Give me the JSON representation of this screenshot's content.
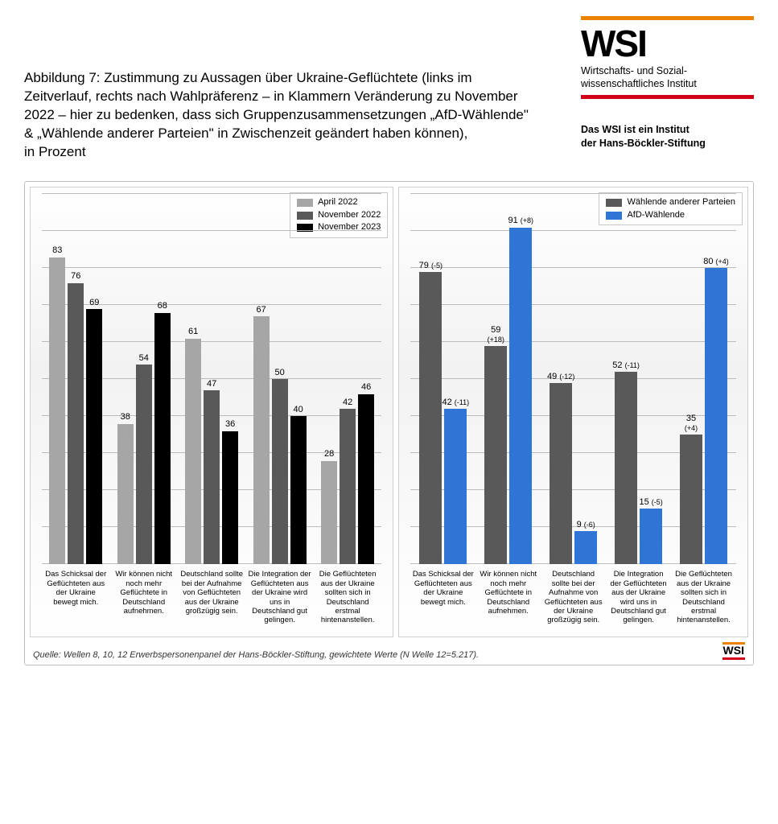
{
  "logo": {
    "name": "WSI",
    "subtitle_l1": "Wirtschafts- und Sozial-",
    "subtitle_l2": "wissenschaftliches Institut",
    "tagline_l1": "Das WSI ist ein Institut",
    "tagline_l2": "der Hans-Böckler-Stiftung",
    "orange": "#e98300",
    "red": "#d10019"
  },
  "title": "Abbildung 7: Zustimmung zu Aussagen über Ukraine-Geflüchtete (links im Zeitverlauf, rechts nach Wahlpräferenz – in Klammern Veränderung zu November 2022 – hier zu bedenken, dass sich Gruppenzusammensetzungen „AfD-Wählende\" & „Wählende anderer Parteien\" in Zwischenzeit geändert haben können),",
  "title_l2": "in Prozent",
  "categories": [
    "Das Schicksal der Geflüchteten aus der Ukraine bewegt mich.",
    "Wir können nicht noch mehr Geflüchtete in Deutschland aufnehmen.",
    "Deutschland sollte bei der Aufnahme von Geflüchteten aus der Ukraine großzügig sein.",
    "Die Integration der Geflüchteten aus der Ukraine wird uns in Deutschland gut gelingen.",
    "Die Geflüchteten aus der Ukraine sollten sich in Deutschland erstmal hintenanstellen."
  ],
  "left_chart": {
    "type": "bar",
    "ymax": 100,
    "grid_step": 10,
    "grid_color": "#bcbcbc",
    "series": [
      {
        "label": "April 2022",
        "color": "#a6a6a6"
      },
      {
        "label": "November 2022",
        "color": "#595959"
      },
      {
        "label": "November 2023",
        "color": "#000000"
      }
    ],
    "values": [
      [
        83,
        76,
        69
      ],
      [
        38,
        54,
        68
      ],
      [
        61,
        47,
        36
      ],
      [
        67,
        50,
        40
      ],
      [
        28,
        42,
        46
      ]
    ]
  },
  "right_chart": {
    "type": "bar",
    "ymax": 100,
    "grid_step": 10,
    "grid_color": "#bcbcbc",
    "series": [
      {
        "label": "Wählende anderer Parteien",
        "color": "#595959"
      },
      {
        "label": "AfD-Wählende",
        "color": "#2e75d6"
      }
    ],
    "values": [
      [
        79,
        42
      ],
      [
        59,
        91
      ],
      [
        49,
        9
      ],
      [
        52,
        15
      ],
      [
        35,
        80
      ]
    ],
    "deltas": [
      [
        "(-5)",
        "(-11)"
      ],
      [
        "(+18)",
        "(+8)"
      ],
      [
        "(-12)",
        "(-6)"
      ],
      [
        "(-11)",
        "(-5)"
      ],
      [
        "(+4)",
        "(+4)"
      ]
    ],
    "delta_below": [
      [
        false,
        false
      ],
      [
        true,
        false
      ],
      [
        false,
        false
      ],
      [
        false,
        false
      ],
      [
        true,
        false
      ]
    ]
  },
  "source": "Quelle: Wellen 8, 10, 12 Erwerbspersonenpanel der Hans-Böckler-Stiftung, gewichtete Werte (N Welle 12=5.217).",
  "mini_logo": "WSI"
}
